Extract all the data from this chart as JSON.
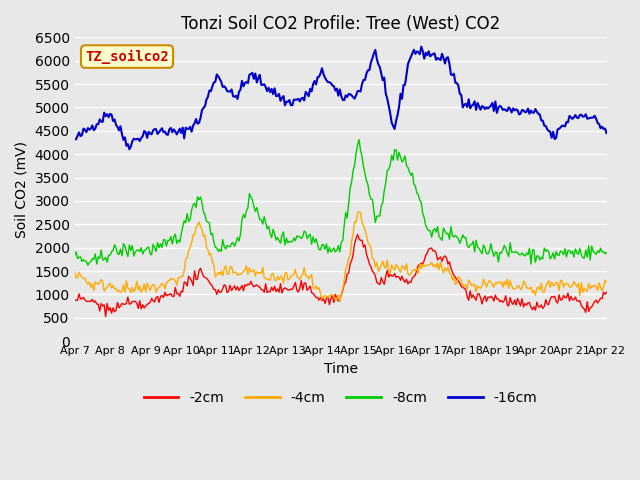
{
  "title": "Tonzi Soil CO2 Profile: Tree (West) CO2",
  "xlabel": "Time",
  "ylabel": "Soil CO2 (mV)",
  "ylim": [
    0,
    6500
  ],
  "xlim": [
    0,
    15
  ],
  "bg_color": "#e8e8e8",
  "plot_bg_color": "#e8e8e8",
  "grid_color": "#ffffff",
  "label_box_text": "TZ_soilco2",
  "label_box_facecolor": "#ffffcc",
  "label_box_edgecolor": "#cc8800",
  "label_box_textcolor": "#cc0000",
  "series_labels": [
    "-2cm",
    "-4cm",
    "-8cm",
    "-16cm"
  ],
  "series_colors": [
    "#ff0000",
    "#ffaa00",
    "#00cc00",
    "#0000cc"
  ],
  "xtick_labels": [
    "Apr 7",
    "Apr 8",
    "Apr 9",
    "Apr 10",
    "Apr 11",
    "Apr 12",
    "Apr 13",
    "Apr 14",
    "Apr 15",
    "Apr 16",
    "Apr 17",
    "Apr 18",
    "Apr 19",
    "Apr 20",
    "Apr 21",
    "Apr 22"
  ],
  "n_points": 360
}
